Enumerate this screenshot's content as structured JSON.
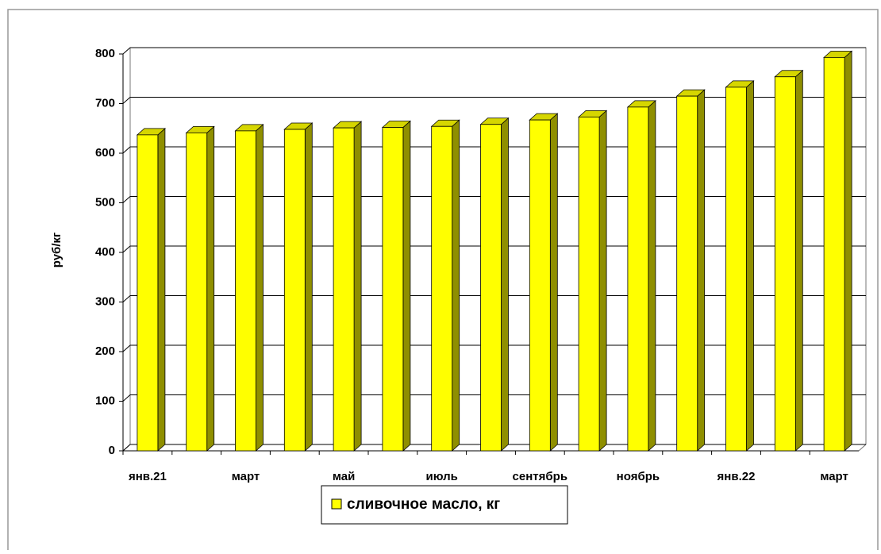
{
  "chart_data": {
    "type": "bar3d",
    "y_label": "руб/кг",
    "categories": [
      "янв.21",
      null,
      "март",
      null,
      "май",
      null,
      "июль",
      null,
      "сентябрь",
      null,
      "ноябрь",
      null,
      "янв.22",
      null,
      "март"
    ],
    "series": [
      {
        "name": "сливочное масло, кг",
        "color": "#ffff00",
        "values": [
          637,
          641,
          645,
          648,
          651,
          652,
          654,
          658,
          667,
          673,
          693,
          715,
          733,
          754,
          793
        ]
      }
    ],
    "ylim": [
      0,
      800
    ],
    "yticks": [
      0,
      100,
      200,
      300,
      400,
      500,
      600,
      700,
      800
    ],
    "grid": true,
    "legend": "bottom"
  }
}
